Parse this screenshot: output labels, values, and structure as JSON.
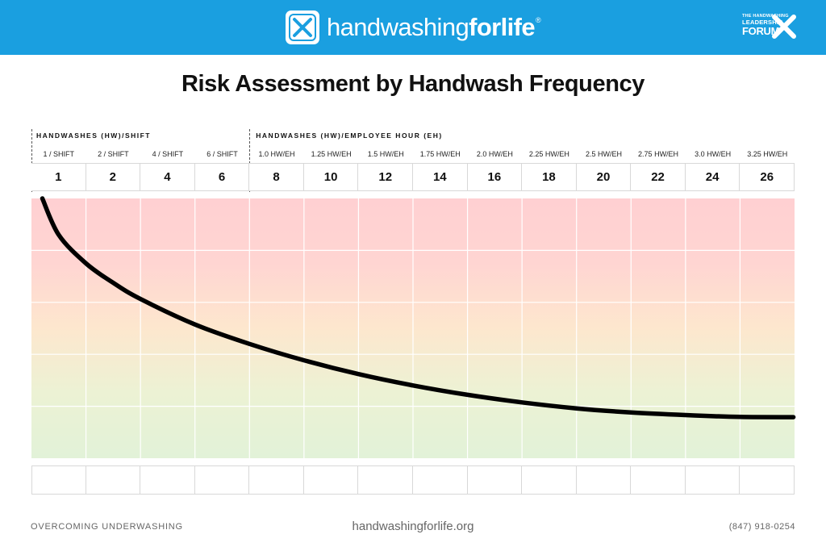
{
  "header": {
    "brand_light": "handwashing",
    "brand_bold": "forlife",
    "brand_mark": "®",
    "logo_icon": "hand-arrows-icon",
    "partner_small_1": "THE HANDWASHING",
    "partner_small_2": "LEADERSHIP",
    "partner_big": "FORUM",
    "partner_icon": "x-hands-icon",
    "colors": {
      "header_bg": "#1a9fe0",
      "curve": "#000000"
    }
  },
  "chart_data": {
    "type": "line",
    "title": "Risk Assessment by Handwash Frequency",
    "group_labels": [
      "HANDWASHES (HW)/SHIFT",
      "HANDWASHES (HW)/EMPLOYEE HOUR (EH)"
    ],
    "categories": [
      "1",
      "2",
      "4",
      "6",
      "8",
      "10",
      "12",
      "14",
      "16",
      "18",
      "20",
      "22",
      "24",
      "26"
    ],
    "sublabels": [
      "1 / SHIFT",
      "2 / SHIFT",
      "4 / SHIFT",
      "6 / SHIFT",
      "1.0 HW/EH",
      "1.25 HW/EH",
      "1.5 HW/EH",
      "1.75 HW/EH",
      "2.0 HW/EH",
      "2.25 HW/EH",
      "2.5 HW/EH",
      "2.75 HW/EH",
      "3.0 HW/EH",
      "3.25 HW/EH"
    ],
    "background_gradient": [
      "#ffd0d2",
      "#ffd5d2",
      "#fde7ce",
      "#ecf2d4",
      "#e2f2d8"
    ],
    "grid": true,
    "ylim": [
      0,
      100
    ],
    "series": [
      {
        "color": "#000000",
        "x": [
          0.2,
          0.5,
          1.0,
          1.5,
          2.0,
          3.0,
          4.0,
          5.0,
          6.0,
          7.0,
          8.0,
          9.0,
          10.0,
          11.0,
          12.0,
          13.0,
          13.98
        ],
        "y": [
          100,
          86,
          75,
          67.5,
          61.3,
          51.5,
          44.0,
          37.7,
          32.4,
          28.0,
          24.4,
          21.5,
          19.2,
          17.6,
          16.6,
          15.9,
          15.8
        ]
      }
    ]
  },
  "footer": {
    "tagline": "OVERCOMING UNDERWASHING",
    "website": "handwashingforlife.org",
    "phone": "(847) 918-0254"
  }
}
